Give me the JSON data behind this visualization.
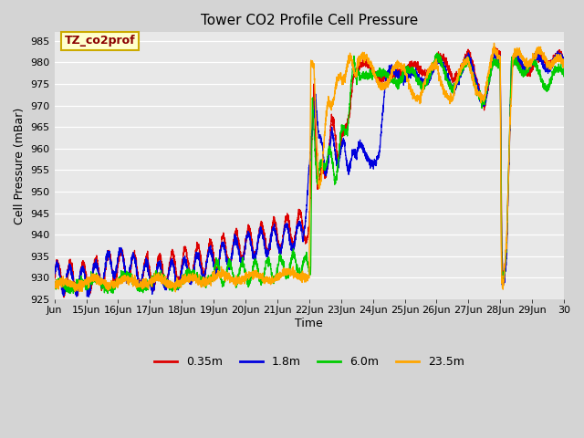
{
  "title": "Tower CO2 Profile Cell Pressure",
  "xlabel": "Time",
  "ylabel": "Cell Pressure (mBar)",
  "ylim": [
    925,
    987
  ],
  "yticks": [
    925,
    930,
    935,
    940,
    945,
    950,
    955,
    960,
    965,
    970,
    975,
    980,
    985
  ],
  "xlim_start": 14.0,
  "xlim_end": 30.0,
  "xtick_positions": [
    14,
    15,
    16,
    17,
    18,
    19,
    20,
    21,
    22,
    23,
    24,
    25,
    26,
    27,
    28,
    29,
    30
  ],
  "xtick_labels": [
    "Jun",
    "15Jun",
    "16Jun",
    "17Jun",
    "18Jun",
    "19Jun",
    "20Jun",
    "21Jun",
    "22Jun",
    "23Jun",
    "24Jun",
    "25Jun",
    "26Jun",
    "27Jun",
    "28Jun",
    "29Jun",
    "30"
  ],
  "colors": {
    "0.35m": "#dd0000",
    "1.8m": "#0000dd",
    "6.0m": "#00cc00",
    "23.5m": "#ffa500"
  },
  "background_color": "#d4d4d4",
  "plot_bg_color": "#e8e8e8",
  "annotation_text": "TZ_co2prof",
  "annotation_bg": "#ffffcc",
  "annotation_border": "#ccaa00",
  "title_fontsize": 11,
  "tick_fontsize": 8,
  "axis_label_fontsize": 9
}
